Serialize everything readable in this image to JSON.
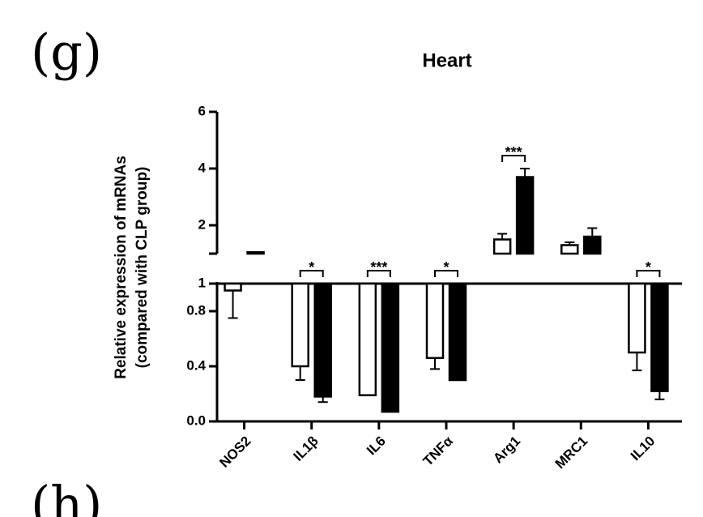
{
  "panel_labels": [
    "(g)",
    "(h)"
  ],
  "chart_data": {
    "type": "bar",
    "title": "Heart",
    "y_label": [
      "Relative expression of mRNAs",
      "(compared with CLP group)"
    ],
    "categories": [
      "NOS2",
      "IL1β",
      "IL6",
      "TNFα",
      "Arg1",
      "MRC1",
      "IL10"
    ],
    "series": [
      {
        "color": "#ffffff",
        "values": [
          0.95,
          0.4,
          0.19,
          0.46,
          1.5,
          1.3,
          0.5
        ],
        "errors": [
          0.2,
          0.1,
          null,
          0.08,
          0.2,
          0.1,
          0.13
        ]
      },
      {
        "color": "#000000",
        "values": [
          1.05,
          0.18,
          0.07,
          0.3,
          3.7,
          1.6,
          0.22
        ],
        "errors": [
          null,
          0.04,
          null,
          null,
          0.3,
          0.3,
          0.06
        ]
      }
    ],
    "significance": [
      null,
      "*",
      "***",
      "*",
      "***",
      null,
      "*"
    ],
    "axes": [
      {
        "ylim": [
          0,
          1
        ],
        "yticks": [
          {
            "value": 0,
            "label": "0.0"
          },
          0.4,
          0.8,
          1
        ]
      },
      {
        "ylim": [
          1,
          6
        ],
        "yticks": [
          2,
          4,
          6
        ]
      }
    ]
  }
}
